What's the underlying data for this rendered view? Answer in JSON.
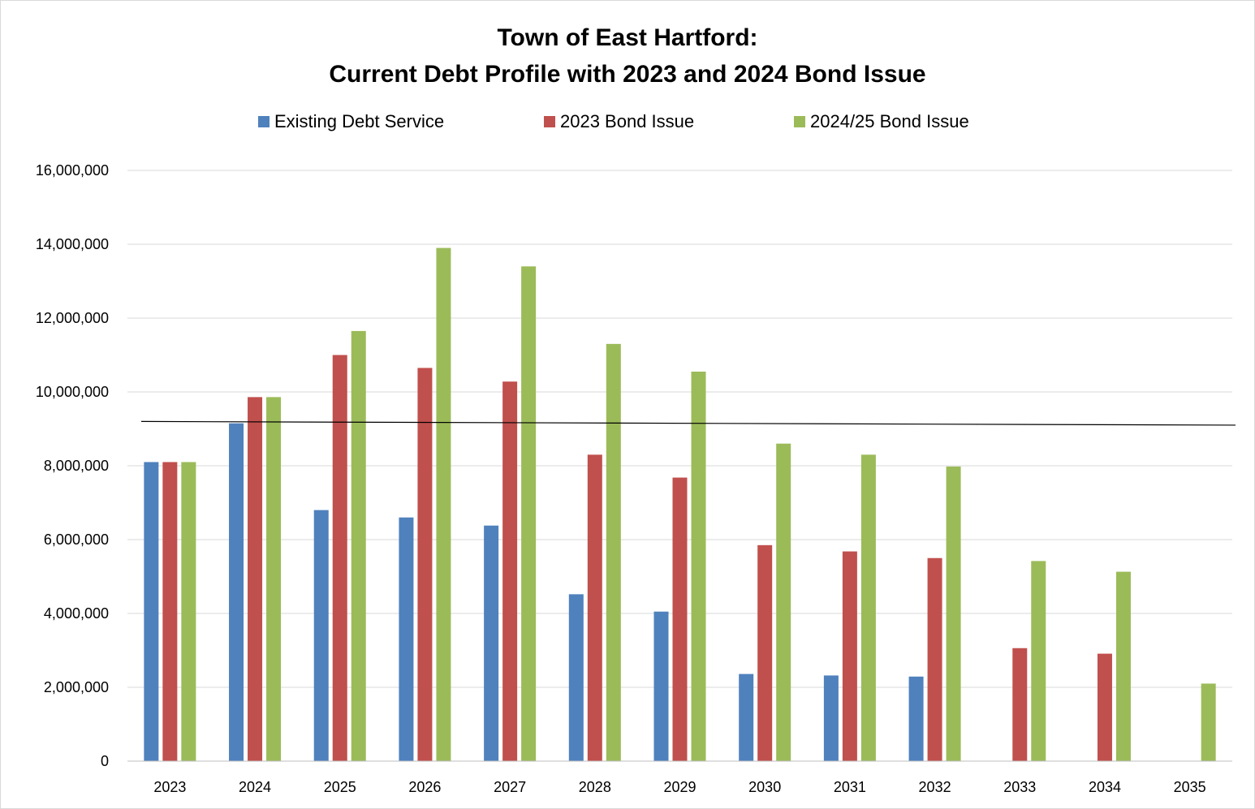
{
  "chart_data": {
    "type": "bar",
    "title_lines": [
      "Town of East Hartford:",
      "Current Debt Profile with 2023 and 2024 Bond Issue"
    ],
    "categories": [
      "2023",
      "2024",
      "2025",
      "2026",
      "2027",
      "2028",
      "2029",
      "2030",
      "2031",
      "2032",
      "2033",
      "2034",
      "2035"
    ],
    "series": [
      {
        "name": "Existing Debt Service",
        "color": "#4f81bd",
        "values": [
          8100000,
          9150000,
          6800000,
          6600000,
          6380000,
          4520000,
          4050000,
          2360000,
          2320000,
          2290000,
          null,
          null,
          null
        ]
      },
      {
        "name": "2023 Bond Issue",
        "color": "#c0504d",
        "values": [
          8100000,
          9860000,
          11000000,
          10650000,
          10280000,
          8300000,
          7680000,
          5850000,
          5680000,
          5500000,
          3060000,
          2910000,
          null
        ]
      },
      {
        "name": "2024/25 Bond Issue",
        "color": "#9bbb59",
        "values": [
          8100000,
          9860000,
          11650000,
          13900000,
          13400000,
          11300000,
          10550000,
          8600000,
          8300000,
          7980000,
          5420000,
          5130000,
          2100000
        ]
      }
    ],
    "ylim": [
      0,
      16000000
    ],
    "yticks": [
      0,
      2000000,
      4000000,
      6000000,
      8000000,
      10000000,
      12000000,
      14000000,
      16000000
    ],
    "ytick_labels": [
      "0",
      "2,000,000",
      "4,000,000",
      "6,000,000",
      "8,000,000",
      "10,000,000",
      "12,000,000",
      "14,000,000",
      "16,000,000"
    ],
    "reference_line": {
      "start": 9200000,
      "end": 9100000,
      "color": "#000000"
    },
    "grid": true,
    "legend_position": "top",
    "xlabel": "",
    "ylabel": ""
  }
}
